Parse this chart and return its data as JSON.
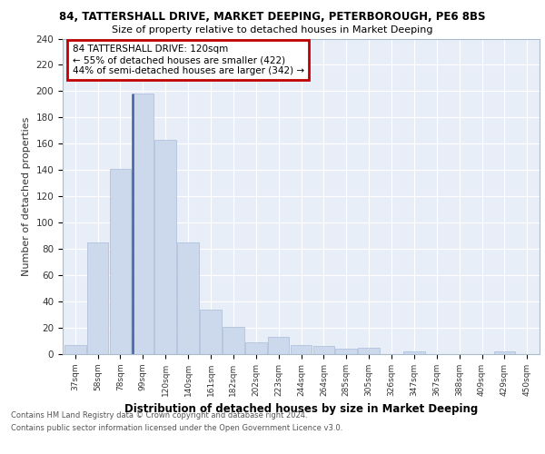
{
  "title1": "84, TATTERSHALL DRIVE, MARKET DEEPING, PETERBOROUGH, PE6 8BS",
  "title2": "Size of property relative to detached houses in Market Deeping",
  "xlabel": "Distribution of detached houses by size in Market Deeping",
  "ylabel": "Number of detached properties",
  "categories": [
    "37sqm",
    "58sqm",
    "78sqm",
    "99sqm",
    "120sqm",
    "140sqm",
    "161sqm",
    "182sqm",
    "202sqm",
    "223sqm",
    "244sqm",
    "264sqm",
    "285sqm",
    "305sqm",
    "326sqm",
    "347sqm",
    "367sqm",
    "388sqm",
    "409sqm",
    "429sqm",
    "450sqm"
  ],
  "values": [
    7,
    85,
    141,
    198,
    163,
    85,
    34,
    21,
    9,
    13,
    7,
    6,
    4,
    5,
    0,
    2,
    0,
    0,
    0,
    2,
    0
  ],
  "bar_color": "#ccd9ec",
  "bar_edge_color": "#a8bcd8",
  "highlight_bar_index": 3,
  "highlight_bar_edge_color": "#4060a0",
  "annotation_line1": "84 TATTERSHALL DRIVE: 120sqm",
  "annotation_line2": "← 55% of detached houses are smaller (422)",
  "annotation_line3": "44% of semi-detached houses are larger (342) →",
  "annotation_box_edge_color": "#c00000",
  "background_color": "#e8eef8",
  "grid_color": "#ffffff",
  "footer1": "Contains HM Land Registry data © Crown copyright and database right 2024.",
  "footer2": "Contains public sector information licensed under the Open Government Licence v3.0.",
  "ylim": [
    0,
    240
  ],
  "yticks": [
    0,
    20,
    40,
    60,
    80,
    100,
    120,
    140,
    160,
    180,
    200,
    220,
    240
  ]
}
